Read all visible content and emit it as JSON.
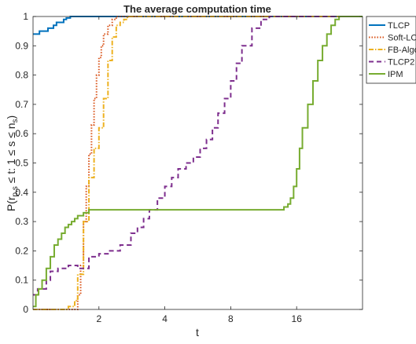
{
  "chart_data": {
    "type": "line",
    "title": "The average computation time",
    "xlabel": "t",
    "ylabel": "P(r",
    "ylabel_sub": "p,s",
    "ylabel_rest": " ≤ t: 1 ≤ s ≤ n",
    "ylabel_sub2": "s",
    "ylabel_end": ")",
    "x_scale": "log2",
    "xlim": [
      1,
      32
    ],
    "ylim": [
      0,
      1
    ],
    "x_ticks": [
      2,
      4,
      8,
      16
    ],
    "x_tick_labels": [
      "2",
      "4",
      "8",
      "16"
    ],
    "y_ticks": [
      0,
      0.1,
      0.2,
      0.3,
      0.4,
      0.5,
      0.6,
      0.7,
      0.8,
      0.9,
      1
    ],
    "y_tick_labels": [
      "0",
      "0.1",
      "0.2",
      "0.3",
      "0.4",
      "0.5",
      "0.6",
      "0.7",
      "0.8",
      "0.9",
      "1"
    ],
    "grid": false,
    "legend_position": "top-right-outside",
    "series": [
      {
        "name": "TLCP",
        "color": "#0072BD",
        "dash": "solid",
        "x": [
          1,
          1.07,
          1.12,
          1.17,
          1.2,
          1.24,
          1.28,
          1.34,
          1.38,
          1.42,
          1.48,
          1.55,
          32
        ],
        "y": [
          0.94,
          0.95,
          0.95,
          0.96,
          0.96,
          0.97,
          0.98,
          0.98,
          0.99,
          0.995,
          1,
          1,
          1
        ]
      },
      {
        "name": "Soft-LCP",
        "color": "#D95319",
        "dash": "dot",
        "x": [
          1,
          1.5,
          1.6,
          1.65,
          1.7,
          1.75,
          1.8,
          1.85,
          1.9,
          1.95,
          2.0,
          2.05,
          2.1,
          2.2,
          2.3,
          2.4,
          2.5,
          32
        ],
        "y": [
          0,
          0,
          0.05,
          0.15,
          0.3,
          0.42,
          0.53,
          0.63,
          0.72,
          0.8,
          0.86,
          0.9,
          0.94,
          0.97,
          0.99,
          1,
          1,
          1
        ]
      },
      {
        "name": "FB-Algorithm",
        "color": "#EDB120",
        "dash": "dashdot",
        "x": [
          1,
          1.35,
          1.45,
          1.55,
          1.6,
          1.7,
          1.8,
          1.9,
          2.0,
          2.1,
          2.2,
          2.3,
          2.4,
          2.5,
          2.6,
          2.7,
          32
        ],
        "y": [
          0,
          0,
          0.01,
          0.03,
          0.12,
          0.3,
          0.45,
          0.55,
          0.62,
          0.72,
          0.85,
          0.93,
          0.97,
          0.98,
          0.99,
          1,
          1
        ]
      },
      {
        "name": "TLCP2",
        "color": "#7E2F8E",
        "dash": "dash",
        "x": [
          1,
          1.05,
          1.15,
          1.2,
          1.3,
          1.45,
          1.6,
          1.8,
          2.0,
          2.2,
          2.5,
          2.8,
          3.0,
          3.2,
          3.4,
          3.7,
          4.0,
          4.3,
          4.6,
          5.0,
          5.4,
          5.8,
          6.2,
          6.6,
          7.0,
          7.5,
          8.0,
          8.5,
          9.0,
          10.0,
          11.0,
          12.0,
          13.0,
          32
        ],
        "y": [
          0.05,
          0.07,
          0.1,
          0.13,
          0.14,
          0.15,
          0.14,
          0.18,
          0.19,
          0.2,
          0.22,
          0.26,
          0.28,
          0.31,
          0.34,
          0.38,
          0.42,
          0.45,
          0.48,
          0.5,
          0.52,
          0.55,
          0.58,
          0.62,
          0.67,
          0.72,
          0.78,
          0.84,
          0.9,
          0.96,
          0.99,
          1,
          1,
          1
        ]
      },
      {
        "name": "IPM",
        "color": "#77AC30",
        "dash": "solid",
        "x": [
          1,
          1.03,
          1.06,
          1.1,
          1.15,
          1.2,
          1.25,
          1.3,
          1.35,
          1.4,
          1.45,
          1.5,
          1.55,
          1.6,
          1.65,
          1.7,
          1.75,
          1.8,
          2.0,
          13.0,
          14.0,
          14.6,
          15.0,
          15.5,
          16.0,
          16.5,
          17.0,
          18.0,
          19.0,
          20.0,
          21.0,
          22.0,
          23.0,
          24.0,
          25.0,
          32
        ],
        "y": [
          0.01,
          0.05,
          0.07,
          0.1,
          0.14,
          0.18,
          0.22,
          0.24,
          0.26,
          0.28,
          0.29,
          0.3,
          0.31,
          0.32,
          0.32,
          0.33,
          0.33,
          0.34,
          0.34,
          0.34,
          0.35,
          0.36,
          0.38,
          0.42,
          0.48,
          0.55,
          0.62,
          0.7,
          0.78,
          0.85,
          0.9,
          0.94,
          0.97,
          0.99,
          1,
          1
        ]
      }
    ]
  }
}
